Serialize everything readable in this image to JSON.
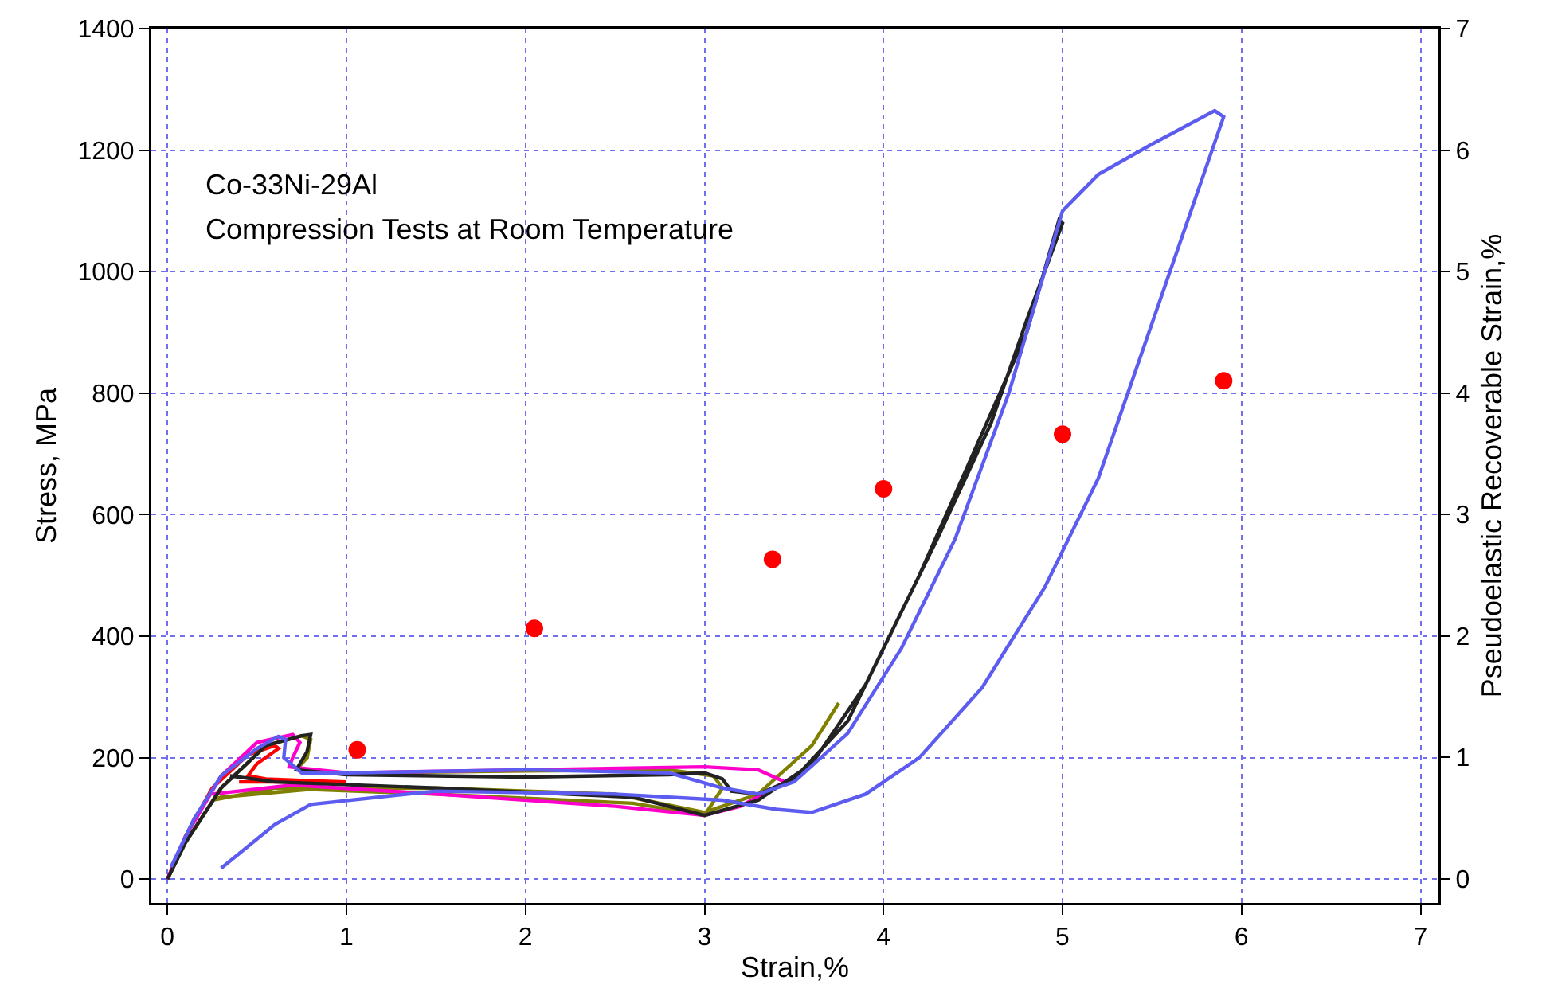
{
  "chart_data": {
    "type": "line",
    "xlabel": "Strain,%",
    "ylabel": "Stress, MPa",
    "y2label": "Pseudoelastic Recoverable Strain,%",
    "annotations": [
      "Co-33Ni-29Al",
      "Compression Tests at Room Temperature"
    ],
    "xlim": [
      -0.09,
      7.1
    ],
    "xticks": [
      0,
      1,
      2,
      3,
      4,
      5,
      6,
      7
    ],
    "ylim": [
      -39,
      1400
    ],
    "yticks": [
      0,
      200,
      400,
      600,
      800,
      1000,
      1200,
      1400
    ],
    "y2lim": [
      -0.2,
      7
    ],
    "y2ticks": [
      0,
      1,
      2,
      3,
      4,
      5,
      6,
      7
    ],
    "grid": true,
    "line_style": "solid",
    "marker": "none",
    "series": [
      {
        "color": "#ff0000",
        "x": [
          0,
          0.1,
          0.25,
          0.45,
          0.6,
          0.62,
          0.5,
          0.45,
          0.55,
          0.8,
          1.0,
          0.6,
          0.4
        ],
        "values": [
          0,
          70,
          150,
          205,
          220,
          215,
          190,
          170,
          165,
          162,
          160,
          160,
          160
        ]
      },
      {
        "color": "#808000",
        "x": [
          0,
          0.1,
          0.3,
          0.55,
          0.75,
          0.8,
          0.78,
          0.72,
          1.0,
          2.0,
          2.8,
          3.05,
          3.1,
          3.0,
          2.6,
          1.5,
          0.6,
          0.25,
          0.3,
          0.8,
          1.5,
          2.5,
          3.0,
          3.3,
          3.6,
          3.75
        ],
        "values": [
          0,
          60,
          150,
          220,
          236,
          230,
          200,
          180,
          175,
          178,
          180,
          170,
          150,
          105,
          125,
          140,
          150,
          130,
          135,
          148,
          150,
          140,
          110,
          140,
          220,
          290
        ]
      },
      {
        "color": "#ff00cc",
        "x": [
          0,
          0.1,
          0.3,
          0.5,
          0.7,
          0.74,
          0.7,
          0.68,
          1.0,
          2.0,
          3.0,
          3.3,
          3.45,
          3.2,
          3.0,
          2.5,
          1.5,
          0.7,
          0.25
        ],
        "values": [
          0,
          70,
          170,
          225,
          238,
          225,
          200,
          185,
          175,
          180,
          185,
          180,
          160,
          120,
          105,
          120,
          140,
          155,
          140
        ]
      },
      {
        "color": "#222222",
        "x": [
          0,
          0.1,
          0.3,
          0.55,
          0.75,
          0.8,
          0.78,
          0.72,
          1.0,
          2.0,
          2.8,
          3.0,
          3.1,
          3.15,
          3.3,
          3.5,
          3.8,
          4.0,
          4.3,
          4.6,
          4.8,
          5.0,
          4.98,
          4.8,
          4.5,
          4.2,
          3.9,
          3.6,
          3.3,
          3.0,
          2.6,
          1.5,
          0.6,
          0.35
        ],
        "values": [
          0,
          60,
          150,
          220,
          236,
          238,
          210,
          180,
          172,
          168,
          172,
          175,
          165,
          145,
          140,
          165,
          260,
          380,
          560,
          750,
          920,
          1080,
          1085,
          900,
          700,
          500,
          320,
          190,
          130,
          105,
          135,
          150,
          160,
          170
        ]
      },
      {
        "color": "#5c5cf0",
        "x": [
          0.02,
          0.15,
          0.3,
          0.5,
          0.62,
          0.66,
          0.65,
          0.75,
          1.0,
          2.0,
          2.8,
          3.1,
          3.3,
          3.5,
          3.8,
          4.1,
          4.4,
          4.7,
          4.9,
          5.0,
          5.2,
          5.5,
          5.85,
          5.9,
          5.6,
          5.2,
          4.9,
          4.55,
          4.2,
          3.9,
          3.6,
          3.4,
          3.1,
          2.5,
          1.5,
          0.8,
          0.6,
          0.3
        ],
        "values": [
          20,
          100,
          170,
          215,
          235,
          230,
          200,
          175,
          175,
          180,
          175,
          150,
          140,
          160,
          240,
          380,
          560,
          800,
          1000,
          1100,
          1160,
          1210,
          1265,
          1255,
          1000,
          660,
          480,
          315,
          200,
          140,
          110,
          115,
          130,
          140,
          145,
          123,
          90,
          18
        ]
      },
      {
        "type": "scatter",
        "axis": "y2",
        "marker": "circle",
        "color": "#ff0000",
        "x": [
          1.06,
          2.05,
          3.38,
          4.0,
          5.0,
          5.9
        ],
        "values": [
          1.06,
          2.06,
          2.63,
          3.21,
          3.66,
          4.1
        ]
      }
    ]
  }
}
